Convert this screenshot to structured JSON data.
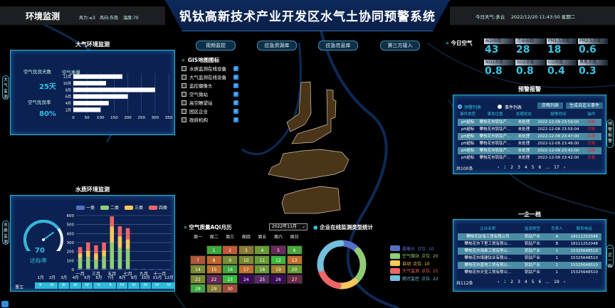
{
  "header": {
    "section": "环境监测",
    "wind_force": "风力:≤3",
    "wind_dir": "风向:东南",
    "temp": "温度:70",
    "title": "钒钛高新技术产业开发区水气土协同预警系统",
    "weather": "今日天气:多云",
    "datetime": "2022/12/20 11:43:50 星期二"
  },
  "nav_buttons": [
    "视频监控",
    "应急资源库",
    "应急信息库",
    "第三方接入"
  ],
  "air_panel": {
    "title": "大气环境监测",
    "side_tab": "大气监测",
    "good_days_label": "空气优良天数",
    "good_days": "25天",
    "good_rate_label": "空气优良率",
    "good_rate": "80%"
  },
  "water_panel": {
    "title": "水质环境监测",
    "side_tab": "水质监测",
    "gauge_value": "70",
    "gauge_label": "达标率",
    "gauge_fraction": 0.7,
    "station": "晋江",
    "months": [
      "1月",
      "2月",
      "3月",
      "4月",
      "5月",
      "6月",
      "7月",
      "8月",
      "9月",
      "10月",
      "11月",
      "12月"
    ],
    "grades": [
      "II",
      "III",
      "III",
      "VI",
      "IV",
      "V",
      "II",
      "IV",
      "VI",
      "IV",
      "IV",
      "VI"
    ]
  },
  "chart_data": [
    {
      "type": "bar",
      "orientation": "horizontal",
      "title": "空气质量",
      "categories": [
        "12月",
        "10月",
        "8月",
        "6月",
        "4月",
        "2月"
      ],
      "values": [
        180,
        120,
        300,
        200,
        130,
        100
      ],
      "xlim": [
        0,
        350
      ],
      "ticks": [
        "0",
        "50",
        "100",
        "150",
        "200",
        "250",
        "300",
        "350"
      ],
      "grid": true,
      "color": "#ffffff"
    },
    {
      "type": "bar",
      "stacked": true,
      "categories": [
        "一月",
        "二月",
        "三月",
        "四月",
        "五月",
        "六月",
        "七月",
        "八月",
        "九月",
        "十月",
        "十一月",
        "十二月"
      ],
      "x_tick_labels": [
        "一月",
        "三月",
        "五月",
        "七月",
        "九月",
        "十一月"
      ],
      "ylim": [
        0,
        600
      ],
      "ticks": [
        "0",
        "100",
        "200",
        "300",
        "400",
        "500",
        "600"
      ],
      "legend_position": "top",
      "series": [
        {
          "name": "一类",
          "color": "#5470c6",
          "values": [
            10,
            10,
            10,
            10,
            10,
            10,
            10,
            5,
            5,
            5,
            5,
            5
          ]
        },
        {
          "name": "二类",
          "color": "#91cc75",
          "values": [
            120,
            130,
            100,
            135,
            290,
            230,
            220,
            0,
            0,
            0,
            0,
            0
          ]
        },
        {
          "name": "三类",
          "color": "#fac858",
          "values": [
            50,
            70,
            70,
            70,
            180,
            130,
            105,
            0,
            0,
            0,
            0,
            0
          ]
        },
        {
          "name": "四类",
          "color": "#ee6666",
          "values": [
            70,
            90,
            90,
            85,
            110,
            110,
            125,
            0,
            0,
            0,
            0,
            0
          ]
        }
      ]
    },
    {
      "type": "pie",
      "donut": true,
      "title": "企业在线监测类型统计",
      "legend_position": "right",
      "series": [
        {
          "name": "摄像头",
          "label": "点位: 10",
          "value": 10,
          "color": "#5470c6"
        },
        {
          "name": "空气微站",
          "label": "点位: 20",
          "value": 20,
          "color": "#91cc75"
        },
        {
          "name": "自动",
          "label": "点位: 10",
          "value": 10,
          "color": "#fac858"
        },
        {
          "name": "大气监测",
          "label": "点位: 15",
          "value": 15,
          "color": "#ee6666"
        },
        {
          "name": "雨污监控",
          "label": "点位: 22",
          "value": 22,
          "color": "#73c0de"
        }
      ]
    }
  ],
  "gis": {
    "title": "GIS地图图标",
    "items": [
      "水质监测在线设备",
      "大气监测在线设备",
      "监控摄像头",
      "空气微站",
      "高空瞭望站",
      "园区企业",
      "政府机构"
    ]
  },
  "calendar": {
    "title": "空气质量AQI月历",
    "selected_month": "2022年11月",
    "weekdays": [
      "周一",
      "周二",
      "周三",
      "周四",
      "周五",
      "周六",
      "周日"
    ],
    "first_weekday": 1,
    "day_colors": [
      "#3ea83e",
      "#c05a34",
      "#8a7a34",
      "#6a9a36",
      "#6a2a5a",
      "#4aa83a",
      "#b05538",
      "#c0652f",
      "#7a8a34",
      "#7a8a34",
      "#6a9a36",
      "#3cb83c",
      "#c0702f",
      "#7a8a34",
      "#c0702f",
      "#3ea83e",
      "#c0702f",
      "#6a9a36",
      "#a0802f",
      "#6a9a36",
      "#7a8a34",
      "#6a2a5a",
      "#3cb83c",
      "#3a0a5a",
      "#5a2a6a",
      "#3a0a5a",
      "#6a2a4a",
      "#3ea83e",
      "#8a7a34",
      "#a04a3a"
    ]
  },
  "air_today": {
    "title": "今日空气",
    "items": [
      {
        "label": "AQI指数",
        "value": "43"
      },
      {
        "label": "污染指数",
        "value": "28"
      },
      {
        "label": "PM1.5浓度",
        "value": "18"
      },
      {
        "label": "PM2.5浓度",
        "value": "0.6"
      },
      {
        "label": "NO2浓度",
        "value": "0.8"
      },
      {
        "label": "SO2浓度",
        "value": "0.8"
      },
      {
        "label": "CO浓度",
        "value": "0.4"
      },
      {
        "label": "臭氧浓度",
        "value": "0.3"
      }
    ]
  },
  "alarm": {
    "title": "预警报警",
    "side_tab": "预警报警",
    "radio_alarm": "预警列表",
    "radio_event": "事件列表",
    "btn_ignore": "忽略列表",
    "btn_create": "生成自定义事件",
    "columns": [
      "事件类型",
      "事发位置",
      "处理状态",
      "报警时间",
      "操作"
    ],
    "rows": [
      [
        "pH超标",
        "攀枝花市钒钛产...",
        "未处理",
        "2022-12-08 23:59:00",
        "忽略"
      ],
      [
        "pH超标",
        "攀枝花市钒钛产...",
        "未处理",
        "2022-12-08 23:55:04",
        "忽略"
      ],
      [
        "pH超标",
        "攀枝花市钒钛产...",
        "未处理",
        "2022-12-08 23:47:00",
        "忽略"
      ],
      [
        "pH超标",
        "攀枝花市钒钛产...",
        "未处理",
        "2022-12-08 23:46:00",
        "忽略"
      ],
      [
        "pH超标",
        "攀枝花市钒钛产...",
        "未处理",
        "2022-12-08 23:43:00",
        "忽略"
      ],
      [
        "pH超标",
        "攀枝花市钒钛产...",
        "未处理",
        "2022-12-08 23:42:00",
        "忽略"
      ]
    ],
    "total": "共100条",
    "pages": [
      "1",
      "2",
      "3",
      "4",
      "5",
      "6",
      "...",
      "17"
    ]
  },
  "enterprise": {
    "title": "一企一档",
    "side_tab": "一企一档",
    "columns": [
      "企业名称",
      "监测类型",
      "负责人",
      "联系电话"
    ],
    "rows": [
      [
        "攀枝花钛海工贸有限公司",
        "钒钛产业",
        "A",
        "18111252048"
      ],
      [
        "攀枝花市下里工贸有限公...",
        "钒钛产业",
        "B",
        "18111252048"
      ],
      [
        "攀枝花市海泰工贸有限公...",
        "钒钛产业",
        "1",
        "15325648510"
      ],
      [
        "攀枝花市煤建钛业有限公...",
        "钒钛产业",
        "1",
        "15325648510"
      ],
      [
        "攀枝花市蓝地工贸有限公...",
        "钒钛产业",
        "1",
        "15325648510"
      ],
      [
        "攀枝花市天宝工贸有限公...",
        "钒钛产业",
        "1",
        "15325648510"
      ]
    ],
    "total": "共112条",
    "pages": [
      "1",
      "2",
      "3",
      "4",
      "5",
      "6",
      "...",
      "19"
    ]
  },
  "colors": {
    "accent": "#2fc2e0",
    "panel": "#0b2152",
    "map_area": "#4a3519",
    "alarm_action": "#e0262b"
  }
}
